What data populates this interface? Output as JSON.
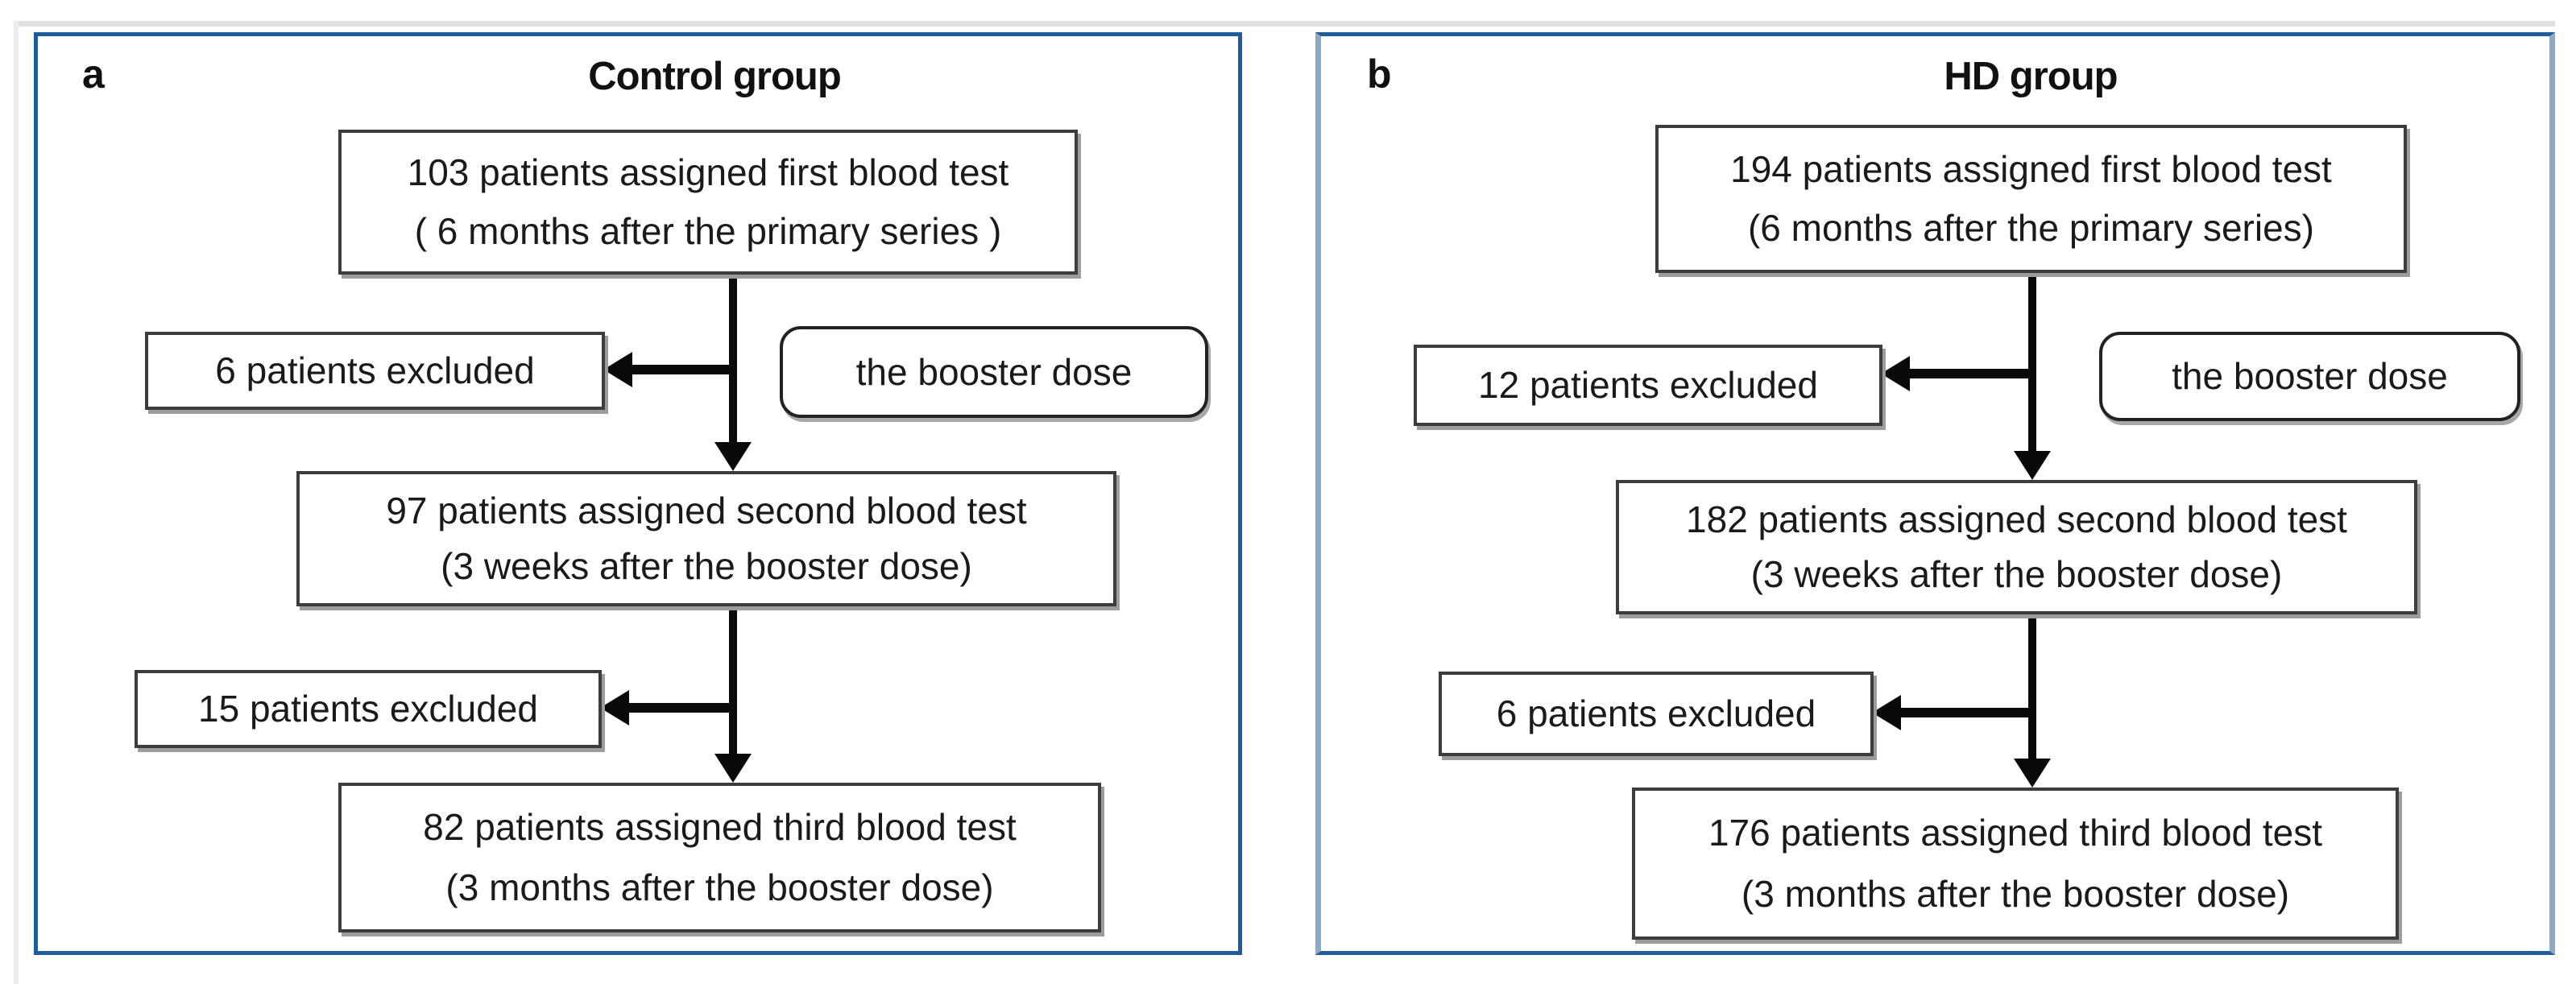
{
  "figure": {
    "panels": [
      {
        "label": "a",
        "title": "Control group",
        "first": {
          "line1": "103 patients assigned first blood test",
          "line2": "( 6 months after the primary series )"
        },
        "excluded_after_first": "6 patients excluded",
        "booster": "the booster dose",
        "second": {
          "line1": "97 patients assigned second blood test",
          "line2": "(3 weeks after the booster dose)"
        },
        "excluded_after_second": "15 patients excluded",
        "third": {
          "line1": "82 patients assigned third blood test",
          "line2": "(3 months after the booster dose)"
        }
      },
      {
        "label": "b",
        "title": "HD group",
        "first": {
          "line1": "194 patients assigned first blood test",
          "line2": "(6 months after the primary series)"
        },
        "excluded_after_first": "12 patients excluded",
        "booster": "the booster dose",
        "second": {
          "line1": "182 patients assigned second blood test",
          "line2": "(3 weeks after the booster dose)"
        },
        "excluded_after_second": "6 patients excluded",
        "third": {
          "line1": "176 patients assigned third blood test",
          "line2": "(3 months after the booster dose)"
        }
      }
    ],
    "colors": {
      "panel_border": "#1f5c99",
      "panel_border_light": "#8fa9c9",
      "box_border": "#3c3c3c",
      "box_shadow": "#9c9c9c",
      "arrow": "#0a0a0a",
      "text": "#1a1a1a",
      "page_edge": "#e0e0e0"
    }
  }
}
